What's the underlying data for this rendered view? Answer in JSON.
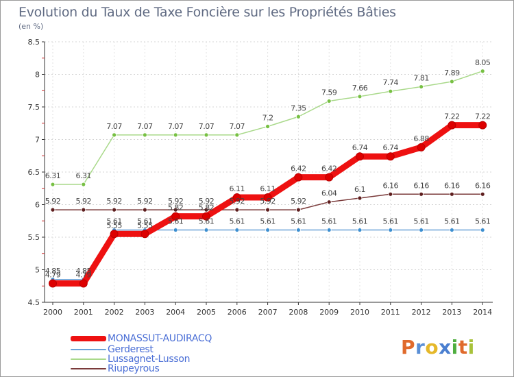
{
  "title": "Evolution du Taux de Taxe Foncière sur les Propriétés Bâties",
  "subtitle": "(en %)",
  "chart_data": {
    "type": "line",
    "title": "Evolution du Taux de Taxe Foncière sur les Propriétés Bâties",
    "ylabel": "(en %)",
    "xlabel": "",
    "ylim": [
      4.5,
      8.5
    ],
    "yticks": [
      "4.5",
      "5",
      "5.5",
      "6",
      "6.5",
      "7",
      "7.5",
      "8",
      "8.5"
    ],
    "x": [
      "2000",
      "2001",
      "2002",
      "2003",
      "2004",
      "2005",
      "2006",
      "2007",
      "2008",
      "2009",
      "2010",
      "2011",
      "2012",
      "2013",
      "2014"
    ],
    "series": [
      {
        "name": "Gerderest",
        "color": "#6aa2d8",
        "marker": "#3d8fd0",
        "values": [
          4.85,
          4.85,
          5.61,
          5.61,
          5.61,
          5.61,
          5.61,
          5.61,
          5.61,
          5.61,
          5.61,
          5.61,
          5.61,
          5.61,
          5.61
        ],
        "labels": [
          "4.85",
          "4.85",
          "5.61",
          "5.61",
          "5.61",
          "5.61",
          "5.61",
          "5.61",
          "5.61",
          "5.61",
          "5.61",
          "5.61",
          "5.61",
          "5.61",
          "5.61"
        ]
      },
      {
        "name": "Lussagnet-Lusson",
        "color": "#a9d98a",
        "marker": "#77c043",
        "values": [
          6.31,
          6.31,
          7.07,
          7.07,
          7.07,
          7.07,
          7.07,
          7.2,
          7.35,
          7.59,
          7.66,
          7.74,
          7.81,
          7.89,
          8.05
        ],
        "labels": [
          "6.31",
          "6.31",
          "7.07",
          "7.07",
          "7.07",
          "7.07",
          "7.07",
          "7.2",
          "7.35",
          "7.59",
          "7.66",
          "7.74",
          "7.81",
          "7.89",
          "8.05"
        ]
      },
      {
        "name": "Riupeyrous",
        "color": "#7a3a3a",
        "marker": "#5e1e1e",
        "values": [
          5.92,
          5.92,
          5.92,
          5.92,
          5.92,
          5.92,
          5.92,
          5.92,
          5.92,
          6.04,
          6.1,
          6.16,
          6.16,
          6.16,
          6.16
        ],
        "labels": [
          "5.92",
          "5.92",
          "5.92",
          "5.92",
          "5.92",
          "5.92",
          "5.92",
          "5.92",
          "5.92",
          "6.04",
          "6.1",
          "6.16",
          "6.16",
          "6.16",
          "6.16"
        ]
      },
      {
        "name": "MONASSUT-AUDIRACQ",
        "color": "#ee1111",
        "marker": "#dd0000",
        "values": [
          4.79,
          4.79,
          5.55,
          5.55,
          5.82,
          5.82,
          6.11,
          6.11,
          6.42,
          6.42,
          6.74,
          6.74,
          6.88,
          7.22,
          7.22
        ],
        "labels": [
          "4.79",
          "4.79",
          "5.55",
          "5.55",
          "5.82",
          "5.82",
          "6.11",
          "6.11",
          "6.42",
          "6.42",
          "6.74",
          "6.74",
          "6.88",
          "7.22",
          "7.22"
        ]
      }
    ]
  },
  "legend": [
    {
      "name": "MONASSUT-AUDIRACQ",
      "color": "#ee1111"
    },
    {
      "name": "Gerderest",
      "color": "#6aa2d8"
    },
    {
      "name": "Lussagnet-Lusson",
      "color": "#a9d98a"
    },
    {
      "name": "Riupeyrous",
      "color": "#7a3a3a"
    }
  ],
  "logo": {
    "letters": [
      "P",
      "r",
      "o",
      "x",
      "i",
      "t",
      "i"
    ],
    "colors": [
      "#e06a2c",
      "#5a8fd6",
      "#e5b82a",
      "#4a7fd0",
      "#4fae3f",
      "#e06a2c",
      "#a8c23a"
    ]
  }
}
